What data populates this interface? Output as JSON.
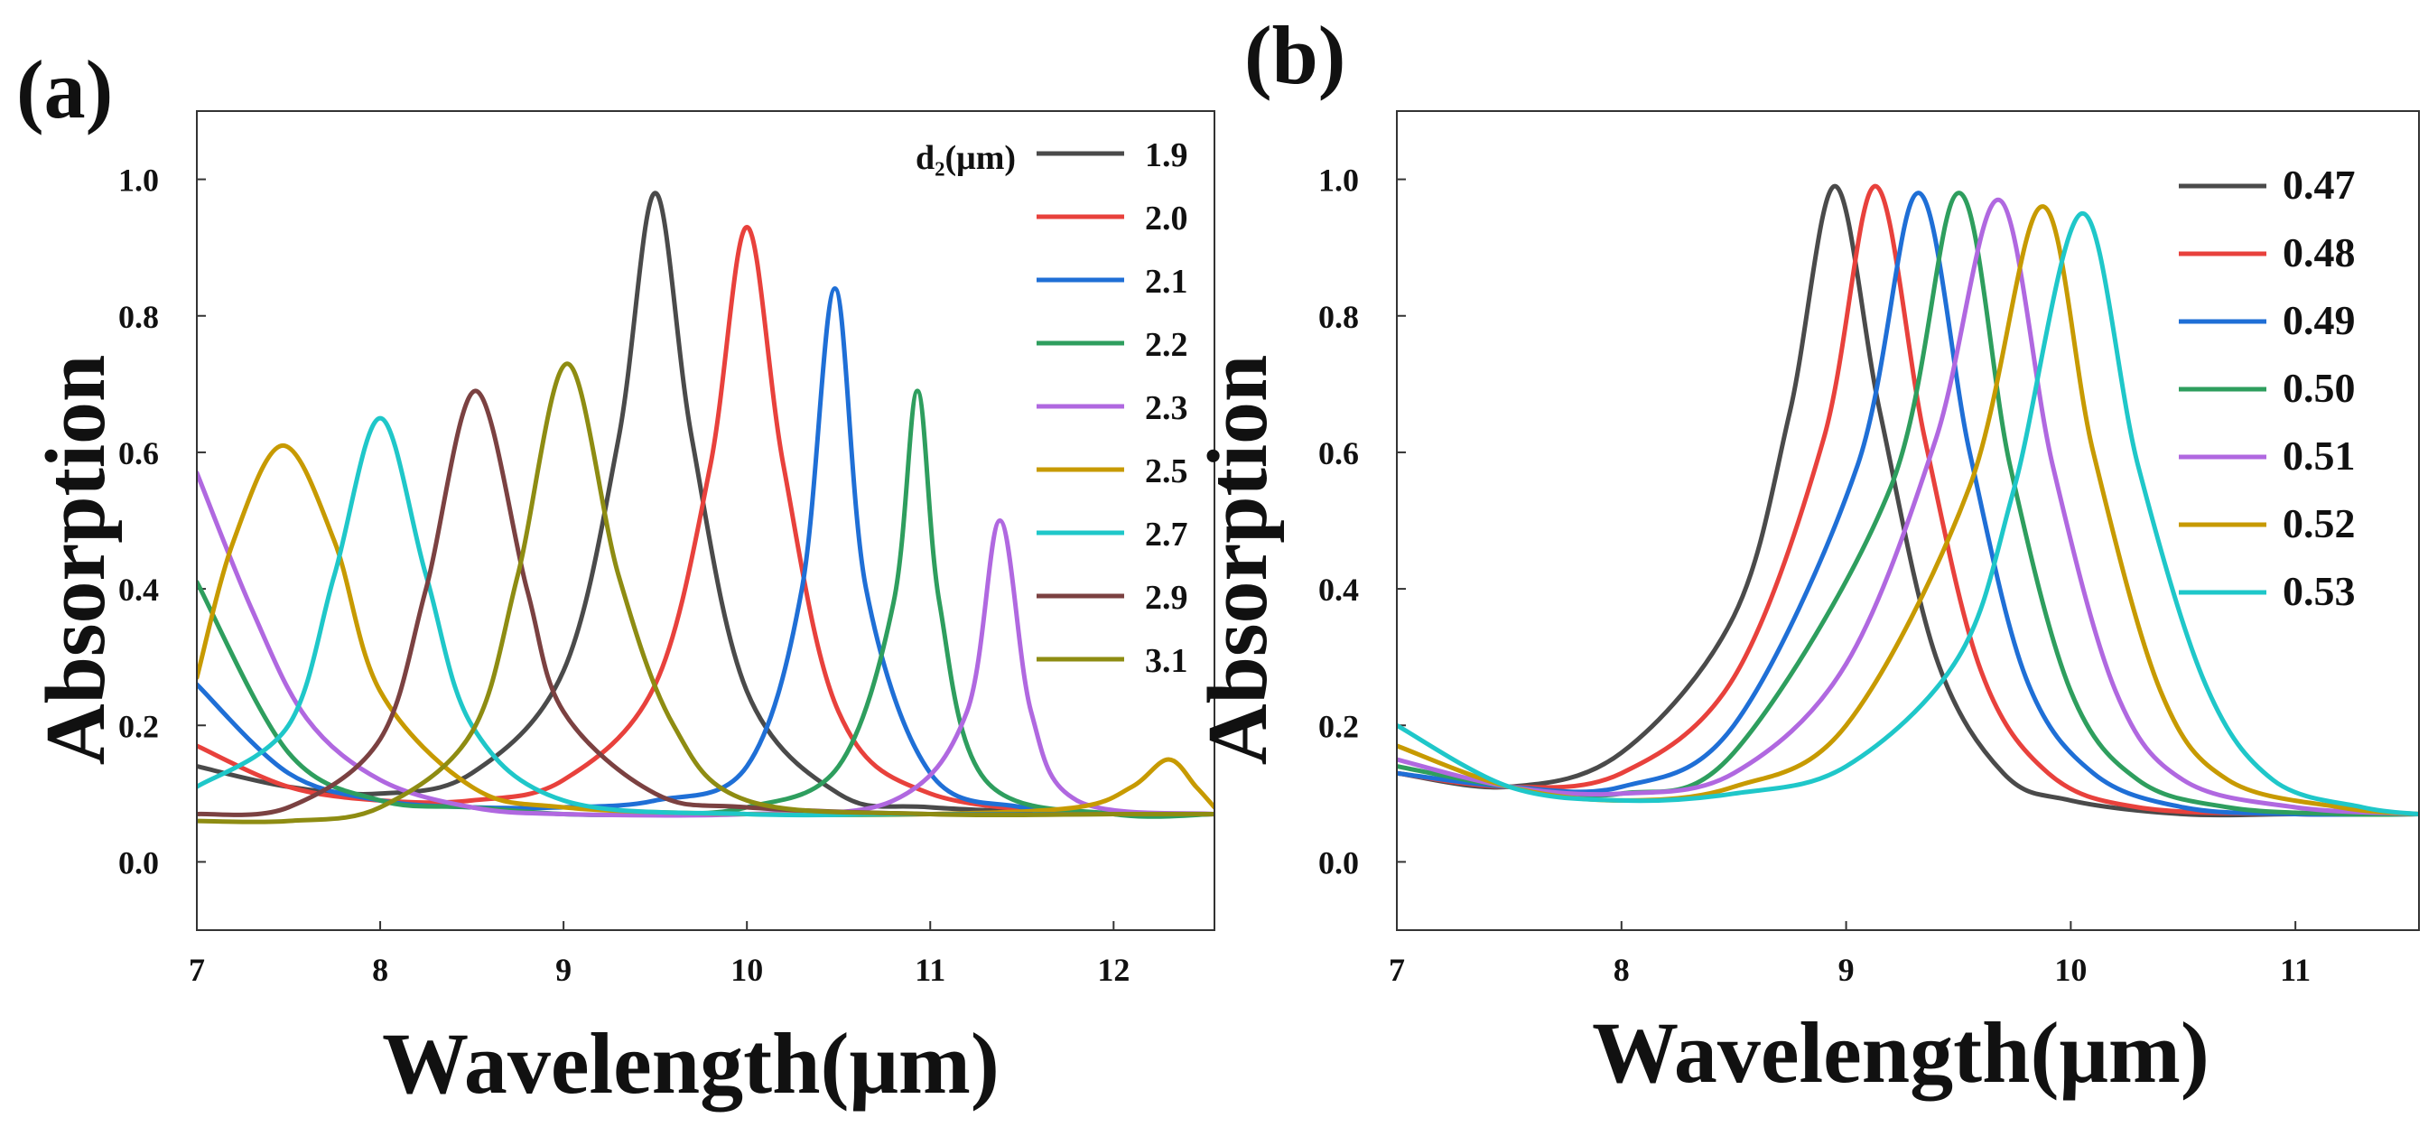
{
  "chart_data": [
    {
      "type": "line",
      "panel_label": "(a)",
      "xlabel": "Wavelength(μm)",
      "ylabel": "Absorption",
      "xlim": [
        7,
        12.55
      ],
      "ylim": [
        -0.1,
        1.1
      ],
      "xticks": [
        "7",
        "8",
        "9",
        "10",
        "11",
        "12"
      ],
      "yticks": [
        "0.0",
        "0.2",
        "0.4",
        "0.6",
        "0.8",
        "1.0"
      ],
      "legend_title": "d₂(μm)",
      "legend_position": "top-right",
      "series": [
        {
          "name": "1.9",
          "color": "#4a4a4a",
          "x": [
            7,
            7.5,
            8,
            8.5,
            9,
            9.3,
            9.5,
            9.7,
            10,
            10.5,
            11,
            12,
            12.55
          ],
          "y": [
            0.14,
            0.11,
            0.1,
            0.13,
            0.28,
            0.62,
            0.98,
            0.62,
            0.25,
            0.1,
            0.08,
            0.07,
            0.07
          ]
        },
        {
          "name": "2.0",
          "color": "#e8413c",
          "x": [
            7,
            7.5,
            8,
            8.5,
            9,
            9.5,
            9.8,
            10,
            10.2,
            10.5,
            11,
            12,
            12.55
          ],
          "y": [
            0.17,
            0.11,
            0.09,
            0.09,
            0.12,
            0.26,
            0.58,
            0.93,
            0.58,
            0.22,
            0.1,
            0.07,
            0.07
          ]
        },
        {
          "name": "2.1",
          "color": "#1f6fd6",
          "x": [
            7,
            7.5,
            8,
            8.5,
            9,
            9.5,
            10,
            10.3,
            10.48,
            10.65,
            11,
            11.5,
            12,
            12.55
          ],
          "y": [
            0.26,
            0.13,
            0.09,
            0.08,
            0.08,
            0.09,
            0.14,
            0.4,
            0.84,
            0.4,
            0.13,
            0.08,
            0.07,
            0.07
          ]
        },
        {
          "name": "2.2",
          "color": "#2e9e5e",
          "x": [
            7,
            7.5,
            8,
            8.5,
            9,
            9.5,
            10,
            10.5,
            10.8,
            10.93,
            11.05,
            11.3,
            12,
            12.55
          ],
          "y": [
            0.41,
            0.16,
            0.09,
            0.08,
            0.07,
            0.07,
            0.08,
            0.14,
            0.38,
            0.69,
            0.38,
            0.12,
            0.07,
            0.07
          ]
        },
        {
          "name": "2.3",
          "color": "#b068e0",
          "x": [
            7,
            7.3,
            7.6,
            8,
            8.5,
            9,
            10,
            10.8,
            11.2,
            11.38,
            11.55,
            11.8,
            12.55
          ],
          "y": [
            0.57,
            0.37,
            0.21,
            0.12,
            0.08,
            0.07,
            0.07,
            0.09,
            0.22,
            0.5,
            0.22,
            0.09,
            0.07
          ]
        },
        {
          "name": "2.5",
          "color": "#c79a00",
          "x": [
            7,
            7.2,
            7.47,
            7.75,
            8,
            8.5,
            9,
            10,
            11,
            11.8,
            12.1,
            12.3,
            12.45,
            12.55
          ],
          "y": [
            0.27,
            0.47,
            0.61,
            0.47,
            0.25,
            0.11,
            0.08,
            0.07,
            0.07,
            0.08,
            0.11,
            0.15,
            0.11,
            0.08
          ]
        },
        {
          "name": "2.7",
          "color": "#1fc7c9",
          "x": [
            7,
            7.5,
            7.75,
            8,
            8.25,
            8.5,
            9,
            10,
            11,
            12,
            12.55
          ],
          "y": [
            0.11,
            0.2,
            0.42,
            0.65,
            0.42,
            0.2,
            0.09,
            0.07,
            0.07,
            0.07,
            0.07
          ]
        },
        {
          "name": "2.9",
          "color": "#7b4141",
          "x": [
            7,
            7.5,
            8,
            8.25,
            8.52,
            8.8,
            9,
            9.5,
            10,
            11,
            12,
            12.55
          ],
          "y": [
            0.07,
            0.08,
            0.18,
            0.4,
            0.69,
            0.4,
            0.22,
            0.1,
            0.08,
            0.07,
            0.07,
            0.07
          ]
        },
        {
          "name": "3.1",
          "color": "#8e8c12",
          "x": [
            7,
            7.5,
            8,
            8.5,
            8.75,
            9.02,
            9.3,
            9.6,
            10,
            11,
            12,
            12.55
          ],
          "y": [
            0.06,
            0.06,
            0.08,
            0.19,
            0.42,
            0.73,
            0.42,
            0.2,
            0.09,
            0.07,
            0.07,
            0.07
          ]
        }
      ]
    },
    {
      "type": "line",
      "panel_label": "(b)",
      "xlabel": "Wavelength(μm)",
      "ylabel": "Absorption",
      "xlim": [
        7,
        11.55
      ],
      "ylim": [
        -0.1,
        1.1
      ],
      "xticks": [
        "7",
        "8",
        "9",
        "10",
        "11"
      ],
      "yticks": [
        "0.0",
        "0.2",
        "0.4",
        "0.6",
        "0.8",
        "1.0"
      ],
      "legend_position": "top-right",
      "series": [
        {
          "name": "0.47",
          "color": "#4a4a4a",
          "x": [
            7,
            7.5,
            8,
            8.5,
            8.75,
            8.95,
            9.15,
            9.4,
            9.7,
            10,
            10.5,
            11,
            11.55
          ],
          "y": [
            0.13,
            0.11,
            0.16,
            0.36,
            0.66,
            0.99,
            0.66,
            0.3,
            0.13,
            0.09,
            0.07,
            0.07,
            0.07
          ]
        },
        {
          "name": "0.48",
          "color": "#e8413c",
          "x": [
            7,
            7.5,
            8,
            8.5,
            8.9,
            9.13,
            9.35,
            9.6,
            9.9,
            10.3,
            11,
            11.55
          ],
          "y": [
            0.13,
            0.11,
            0.13,
            0.27,
            0.62,
            0.99,
            0.62,
            0.28,
            0.13,
            0.08,
            0.07,
            0.07
          ]
        },
        {
          "name": "0.49",
          "color": "#1f6fd6",
          "x": [
            7,
            7.5,
            8,
            8.5,
            9.05,
            9.32,
            9.55,
            9.8,
            10.1,
            10.5,
            11,
            11.55
          ],
          "y": [
            0.13,
            0.11,
            0.11,
            0.2,
            0.58,
            0.98,
            0.6,
            0.27,
            0.13,
            0.08,
            0.07,
            0.07
          ]
        },
        {
          "name": "0.50",
          "color": "#2e9e5e",
          "x": [
            7,
            7.5,
            8,
            8.5,
            9.2,
            9.5,
            9.73,
            10,
            10.3,
            10.7,
            11.2,
            11.55
          ],
          "y": [
            0.14,
            0.11,
            0.1,
            0.16,
            0.55,
            0.98,
            0.58,
            0.25,
            0.12,
            0.08,
            0.07,
            0.07
          ]
        },
        {
          "name": "0.51",
          "color": "#b068e0",
          "x": [
            7,
            7.5,
            8,
            8.5,
            9,
            9.4,
            9.68,
            9.92,
            10.2,
            10.5,
            11,
            11.55
          ],
          "y": [
            0.15,
            0.11,
            0.1,
            0.13,
            0.29,
            0.62,
            0.97,
            0.58,
            0.25,
            0.12,
            0.08,
            0.07
          ]
        },
        {
          "name": "0.52",
          "color": "#c79a00",
          "x": [
            7,
            7.5,
            8,
            8.5,
            9,
            9.55,
            9.87,
            10.1,
            10.4,
            10.7,
            11.2,
            11.55
          ],
          "y": [
            0.17,
            0.11,
            0.09,
            0.11,
            0.2,
            0.55,
            0.96,
            0.6,
            0.25,
            0.12,
            0.08,
            0.07
          ]
        },
        {
          "name": "0.53",
          "color": "#1fc7c9",
          "x": [
            7,
            7.5,
            8,
            8.5,
            9,
            9.5,
            9.75,
            10.05,
            10.3,
            10.6,
            10.9,
            11.3,
            11.55
          ],
          "y": [
            0.2,
            0.11,
            0.09,
            0.1,
            0.14,
            0.3,
            0.55,
            0.95,
            0.58,
            0.26,
            0.12,
            0.08,
            0.07
          ]
        }
      ]
    }
  ]
}
